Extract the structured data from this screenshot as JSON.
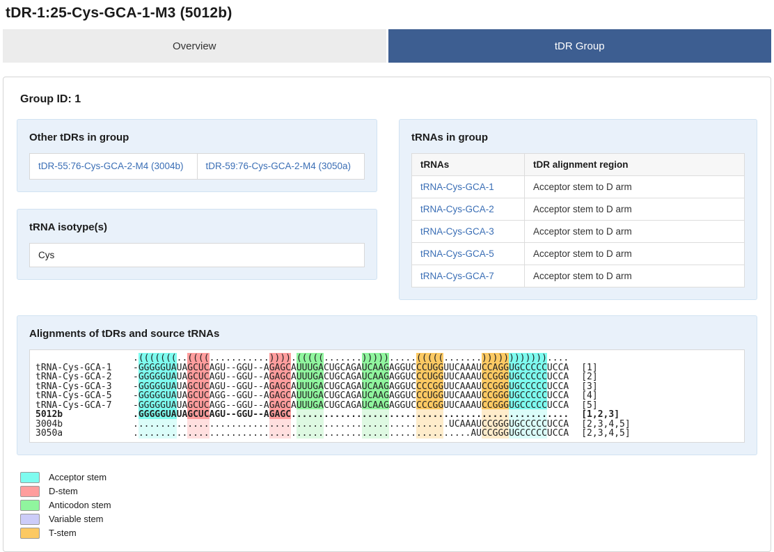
{
  "page_title": "tDR-1:25-Cys-GCA-1-M3 (5012b)",
  "tabs": [
    {
      "label": "Overview",
      "active": false
    },
    {
      "label": "tDR Group",
      "active": true
    }
  ],
  "group_id_label": "Group ID: 1",
  "other_tdrs": {
    "title": "Other tDRs in group",
    "links": [
      "tDR-55:76-Cys-GCA-2-M4 (3004b)",
      "tDR-59:76-Cys-GCA-2-M4 (3050a)"
    ]
  },
  "isotype": {
    "title": "tRNA isotype(s)",
    "value": "Cys"
  },
  "trnas_table": {
    "title": "tRNAs in group",
    "columns": [
      "tRNAs",
      "tDR alignment region"
    ],
    "rows": [
      [
        "tRNA-Cys-GCA-1",
        "Acceptor stem to D arm"
      ],
      [
        "tRNA-Cys-GCA-2",
        "Acceptor stem to D arm"
      ],
      [
        "tRNA-Cys-GCA-3",
        "Acceptor stem to D arm"
      ],
      [
        "tRNA-Cys-GCA-5",
        "Acceptor stem to D arm"
      ],
      [
        "tRNA-Cys-GCA-7",
        "Acceptor stem to D arm"
      ]
    ]
  },
  "alignment": {
    "title": "Alignments of tDRs and source tRNAs",
    "structure_chunks": [
      ".(((((((..",
      "((((......",
      ".....)))).",
      "(((((.....",
      "..)))))...",
      "..(((((...",
      "....))))))",
      "))))))...."
    ],
    "regions": [
      {
        "name": "acceptor-stem",
        "color": "#7efbef",
        "fade": "#dbfdf9",
        "ranges": [
          [
            2,
            8
          ],
          [
            70,
            76
          ]
        ]
      },
      {
        "name": "d-stem",
        "color": "#ff9d9d",
        "fade": "#ffdfdf",
        "ranges": [
          [
            11,
            14
          ],
          [
            26,
            29
          ]
        ]
      },
      {
        "name": "anticodon-stem",
        "color": "#90f59e",
        "fade": "#def9e2",
        "ranges": [
          [
            31,
            35
          ],
          [
            43,
            47
          ]
        ]
      },
      {
        "name": "t-stem",
        "color": "#fcc963",
        "fade": "#feeccb",
        "ranges": [
          [
            53,
            57
          ],
          [
            65,
            69
          ]
        ]
      }
    ],
    "rows": [
      {
        "label": "tRNA-Cys-GCA-1",
        "annot": "[1]",
        "bold": false,
        "fade": "none",
        "seq_chunks": [
          "-GGGGGUAUA",
          "GCUCAGU--G",
          "GU--AGAGCA",
          "UUUGACUGCA",
          "GAUCAAGAGG",
          "UCCCUGGUUC",
          "AAAUCCAGGU",
          "GCCCCCUCCA"
        ]
      },
      {
        "label": "tRNA-Cys-GCA-2",
        "annot": "[2]",
        "bold": false,
        "fade": "none",
        "seq_chunks": [
          "-GGGGGUAUA",
          "GCUCAGU--G",
          "GU--AGAGCA",
          "UUUGACUGCA",
          "GAUCAAGAGG",
          "UCCCUGGUUC",
          "AAAUCCGGGU",
          "GCCCCCUCCA"
        ]
      },
      {
        "label": "tRNA-Cys-GCA-3",
        "annot": "[3]",
        "bold": false,
        "fade": "none",
        "seq_chunks": [
          "-GGGGGUAUA",
          "GCUCAGU--G",
          "GU--AGAGCA",
          "UUUGACUGCA",
          "GAUCAAGAGG",
          "UCCCCGGUUC",
          "AAAUCCGGGU",
          "GCCCCCUCCA"
        ]
      },
      {
        "label": "tRNA-Cys-GCA-5",
        "annot": "[4]",
        "bold": false,
        "fade": "none",
        "seq_chunks": [
          "-GGGGGUAUA",
          "GCUCAGG--G",
          "GU--AGAGCA",
          "UUUGACUGCA",
          "GAUCAAGAGG",
          "UCCCUGGUUC",
          "AAAUCCGGGU",
          "GCCCCCUCCA"
        ]
      },
      {
        "label": "tRNA-Cys-GCA-7",
        "annot": "[5]",
        "bold": false,
        "fade": "none",
        "seq_chunks": [
          "-GGGGGUAUA",
          "GCUCAGG--G",
          "GU--AGAGCA",
          "UUUGACUGCA",
          "GAUCAAGAGG",
          "UCCCCGGUUC",
          "AAAUCCGGGU",
          "GCCCCCUCCA"
        ]
      },
      {
        "label": "5012b",
        "annot": "[1,2,3]",
        "bold": true,
        "fade": "dots",
        "seq_chunks": [
          ".GGGGGUAUA",
          "GCUCAGU--G",
          "GU--AGAGC.",
          "..........",
          "..........",
          "..........",
          "..........",
          ".........."
        ]
      },
      {
        "label": "3004b",
        "annot": "[2,3,4,5]",
        "bold": false,
        "fade": "all",
        "seq_chunks": [
          "..........",
          "..........",
          "..........",
          "..........",
          "..........",
          "........UC",
          "AAAUCCGGGU",
          "GCCCCCUCCA"
        ]
      },
      {
        "label": "3050a",
        "annot": "[2,3,4,5]",
        "bold": false,
        "fade": "all",
        "seq_chunks": [
          "..........",
          "..........",
          "..........",
          "..........",
          "..........",
          "..........",
          "..AUCCGGGU",
          "GCCCCCUCCA"
        ]
      }
    ]
  },
  "legend": [
    {
      "label": "Acceptor stem",
      "color": "#7efbef"
    },
    {
      "label": "D-stem",
      "color": "#ff9d9d"
    },
    {
      "label": "Anticodon stem",
      "color": "#90f59e"
    },
    {
      "label": "Variable stem",
      "color": "#ccccf8"
    },
    {
      "label": "T-stem",
      "color": "#fcc963"
    }
  ]
}
